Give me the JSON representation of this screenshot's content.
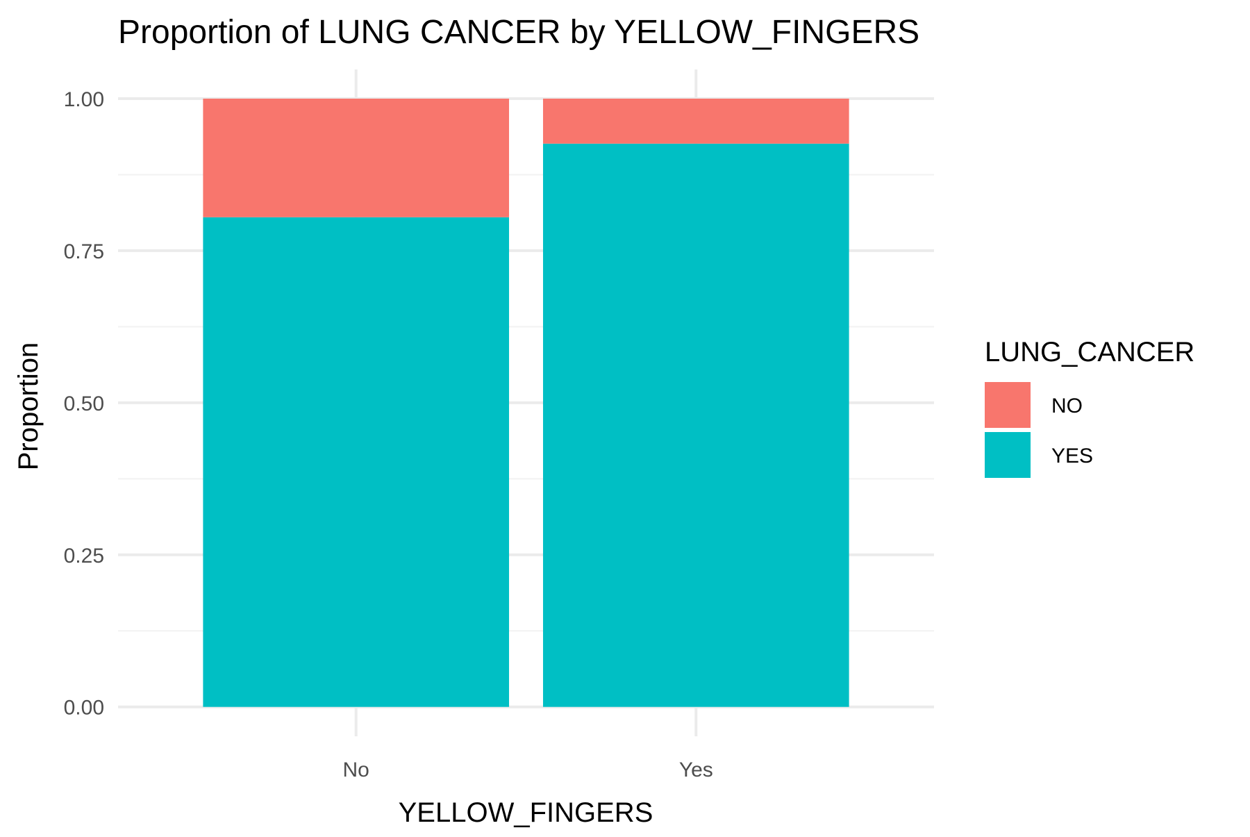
{
  "chart_data": {
    "type": "bar",
    "stacked": true,
    "title": "Proportion of LUNG CANCER by YELLOW_FINGERS",
    "xlabel": "YELLOW_FINGERS",
    "ylabel": "Proportion",
    "categories": [
      "No",
      "Yes"
    ],
    "series": [
      {
        "name": "NO",
        "values": [
          0.195,
          0.074
        ]
      },
      {
        "name": "YES",
        "values": [
          0.805,
          0.926
        ]
      }
    ],
    "ylim": [
      0,
      1
    ],
    "yticks": [
      0.0,
      0.25,
      0.5,
      0.75,
      1.0
    ],
    "ytick_labels": [
      "0.00",
      "0.25",
      "0.50",
      "0.75",
      "1.00"
    ],
    "grid": true,
    "legend": {
      "title": "LUNG_CANCER",
      "position": "right",
      "entries": [
        "NO",
        "YES"
      ]
    },
    "colors": {
      "NO": "#F8766D",
      "YES": "#00BFC4",
      "grid_major": "#EBEBEB",
      "grid_minor": "#F2F2F2",
      "tick_text": "#4D4D4D",
      "title_text": "#000000"
    }
  }
}
